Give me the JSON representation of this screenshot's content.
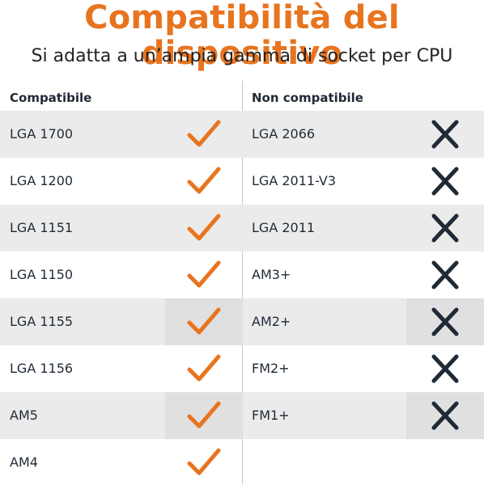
{
  "header": {
    "title": "Compatibilità del dispositivo",
    "subtitle": "Si adatta a un’ampia gamma di socket per CPU"
  },
  "colors": {
    "accent": "#e8741f",
    "cross": "#1f2a36",
    "row_shade": "#ebebeb"
  },
  "compatible": {
    "heading": "Compatibile",
    "icon": "check-icon",
    "items": [
      {
        "label": "LGA 1700",
        "shaded": true
      },
      {
        "label": "LGA 1200",
        "shaded": false
      },
      {
        "label": "LGA 1151",
        "shaded": true
      },
      {
        "label": "LGA 1150",
        "shaded": false
      },
      {
        "label": "LGA 1155",
        "shaded": true
      },
      {
        "label": "LGA 1156",
        "shaded": false
      },
      {
        "label": "AM5",
        "shaded": true
      },
      {
        "label": "AM4",
        "shaded": false
      }
    ]
  },
  "incompatible": {
    "heading": "Non compatibile",
    "icon": "cross-icon",
    "items": [
      {
        "label": "LGA 2066",
        "shaded": true
      },
      {
        "label": "LGA 2011-V3",
        "shaded": false
      },
      {
        "label": "LGA 2011",
        "shaded": true
      },
      {
        "label": "AM3+",
        "shaded": false
      },
      {
        "label": "AM2+",
        "shaded": true
      },
      {
        "label": "FM2+",
        "shaded": false
      },
      {
        "label": "FM1+",
        "shaded": true
      }
    ]
  }
}
